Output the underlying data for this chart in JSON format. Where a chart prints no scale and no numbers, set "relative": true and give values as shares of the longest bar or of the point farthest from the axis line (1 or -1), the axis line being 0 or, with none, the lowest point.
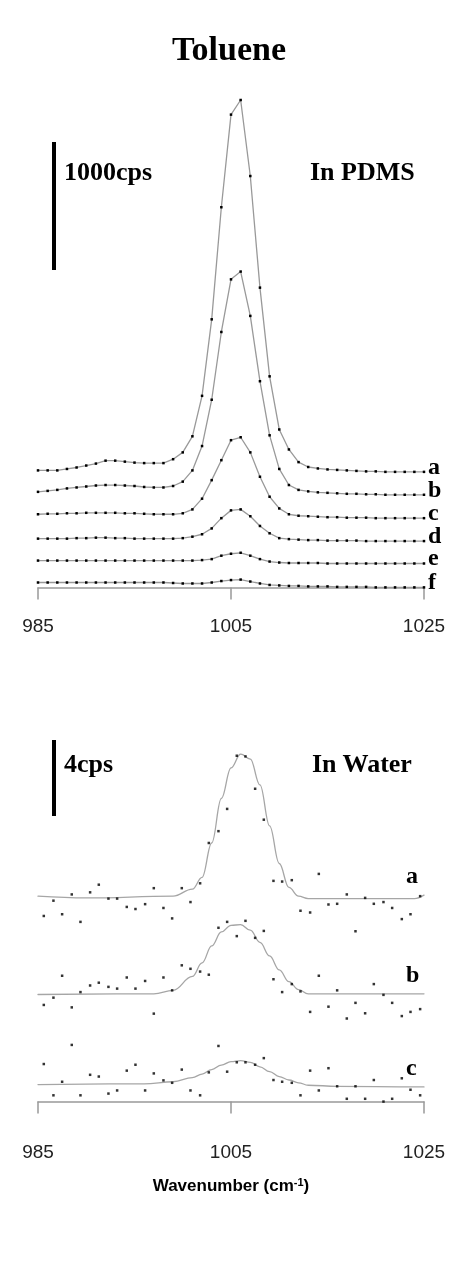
{
  "chart_data": [
    {
      "type": "line",
      "title": "Toluene",
      "relative": true,
      "xlim": [
        985,
        1025
      ],
      "xticks": [
        985,
        1005,
        1025
      ],
      "tick_labels": "x",
      "grid": false,
      "legend": false,
      "marker": "square",
      "line_style": "solid",
      "annotations": [
        "1000cps",
        "In PDMS"
      ],
      "x": [
        985,
        986,
        987,
        988,
        989,
        990,
        991,
        992,
        993,
        994,
        995,
        996,
        997,
        998,
        999,
        1000,
        1001,
        1002,
        1003,
        1004,
        1005,
        1006,
        1007,
        1008,
        1009,
        1010,
        1011,
        1012,
        1013,
        1014,
        1015,
        1016,
        1017,
        1018,
        1019,
        1020,
        1021,
        1022,
        1023,
        1024,
        1025
      ],
      "series": [
        {
          "name": "a",
          "color": "#999999",
          "values": [
            0.24,
            0.24,
            0.24,
            0.243,
            0.246,
            0.25,
            0.254,
            0.26,
            0.26,
            0.258,
            0.256,
            0.255,
            0.255,
            0.255,
            0.263,
            0.277,
            0.31,
            0.393,
            0.55,
            0.78,
            0.97,
            1.0,
            0.844,
            0.615,
            0.433,
            0.324,
            0.283,
            0.257,
            0.247,
            0.244,
            0.242,
            0.241,
            0.24,
            0.239,
            0.238,
            0.238,
            0.237,
            0.237,
            0.237,
            0.237,
            0.237
          ]
        },
        {
          "name": "b",
          "color": "#999999",
          "values": [
            0.196,
            0.198,
            0.2,
            0.203,
            0.205,
            0.207,
            0.209,
            0.21,
            0.21,
            0.209,
            0.208,
            0.206,
            0.205,
            0.205,
            0.208,
            0.217,
            0.24,
            0.29,
            0.385,
            0.524,
            0.632,
            0.648,
            0.557,
            0.423,
            0.312,
            0.243,
            0.21,
            0.2,
            0.197,
            0.195,
            0.194,
            0.193,
            0.192,
            0.192,
            0.191,
            0.191,
            0.19,
            0.19,
            0.19,
            0.19,
            0.19
          ]
        },
        {
          "name": "c",
          "color": "#999999",
          "values": [
            0.15,
            0.151,
            0.151,
            0.152,
            0.152,
            0.153,
            0.153,
            0.153,
            0.153,
            0.152,
            0.152,
            0.151,
            0.15,
            0.15,
            0.15,
            0.152,
            0.16,
            0.182,
            0.22,
            0.261,
            0.302,
            0.308,
            0.277,
            0.227,
            0.186,
            0.162,
            0.15,
            0.147,
            0.146,
            0.145,
            0.144,
            0.144,
            0.143,
            0.143,
            0.143,
            0.142,
            0.142,
            0.142,
            0.142,
            0.142,
            0.142
          ]
        },
        {
          "name": "d",
          "color": "#999999",
          "values": [
            0.1,
            0.1,
            0.1,
            0.1,
            0.101,
            0.101,
            0.102,
            0.102,
            0.101,
            0.101,
            0.1,
            0.1,
            0.1,
            0.1,
            0.1,
            0.101,
            0.104,
            0.109,
            0.121,
            0.142,
            0.158,
            0.16,
            0.146,
            0.126,
            0.111,
            0.101,
            0.099,
            0.098,
            0.097,
            0.097,
            0.096,
            0.096,
            0.096,
            0.096,
            0.095,
            0.095,
            0.095,
            0.095,
            0.095,
            0.095,
            0.095
          ]
        },
        {
          "name": "e",
          "color": "#999999",
          "values": [
            0.055,
            0.055,
            0.055,
            0.055,
            0.055,
            0.055,
            0.055,
            0.055,
            0.055,
            0.055,
            0.055,
            0.055,
            0.055,
            0.055,
            0.055,
            0.055,
            0.055,
            0.056,
            0.058,
            0.065,
            0.069,
            0.071,
            0.065,
            0.058,
            0.053,
            0.051,
            0.05,
            0.05,
            0.05,
            0.05,
            0.049,
            0.049,
            0.049,
            0.049,
            0.049,
            0.049,
            0.049,
            0.049,
            0.049,
            0.049,
            0.049
          ]
        },
        {
          "name": "f",
          "color": "#999999",
          "values": [
            0.01,
            0.01,
            0.01,
            0.01,
            0.01,
            0.01,
            0.01,
            0.01,
            0.01,
            0.01,
            0.01,
            0.01,
            0.01,
            0.01,
            0.009,
            0.008,
            0.008,
            0.008,
            0.01,
            0.013,
            0.015,
            0.016,
            0.012,
            0.008,
            0.005,
            0.004,
            0.003,
            0.003,
            0.002,
            0.002,
            0.002,
            0.001,
            0.001,
            0.001,
            0.001,
            0,
            0,
            0,
            0,
            0,
            0
          ]
        }
      ]
    },
    {
      "type": "line",
      "xlabel": "Wavenumber (cm$^{-1}$)",
      "relative": true,
      "xlim": [
        985,
        1025
      ],
      "xticks": [
        985,
        1005,
        1025
      ],
      "tick_labels": "x",
      "grid": false,
      "legend": false,
      "line_style": "solid",
      "annotations": [
        "4cps",
        "In Water"
      ],
      "series": [
        {
          "name": "a",
          "color": "#a6a6a6",
          "x": [
            985,
            990,
            999,
            1001,
            1002,
            1003,
            1004,
            1005,
            1006,
            1007,
            1008,
            1009,
            1010,
            1011,
            1012,
            1013,
            1024,
            1025
          ],
          "values": [
            0.591,
            0.586,
            0.591,
            0.611,
            0.645,
            0.744,
            0.872,
            0.96,
            1.0,
            0.985,
            0.911,
            0.793,
            0.685,
            0.616,
            0.591,
            0.584,
            0.584,
            0.594
          ]
        },
        {
          "name": "b",
          "color": "#a6a6a6",
          "x": [
            985,
            997,
            999,
            1001,
            1002,
            1003,
            1004,
            1005,
            1006,
            1007,
            1008,
            1009,
            1010,
            1011,
            1012,
            1013,
            1025
          ],
          "values": [
            0.308,
            0.31,
            0.32,
            0.36,
            0.399,
            0.448,
            0.488,
            0.507,
            0.509,
            0.493,
            0.458,
            0.419,
            0.379,
            0.345,
            0.322,
            0.31,
            0.31
          ]
        },
        {
          "name": "c",
          "color": "#a6a6a6",
          "x": [
            985,
            996,
            999,
            1001,
            1002,
            1003,
            1004,
            1005,
            1006,
            1007,
            1008,
            1009,
            1010,
            1011,
            1012,
            1013,
            1016,
            1025
          ],
          "values": [
            0.049,
            0.051,
            0.057,
            0.069,
            0.079,
            0.092,
            0.105,
            0.115,
            0.118,
            0.113,
            0.1,
            0.086,
            0.072,
            0.062,
            0.054,
            0.047,
            0.044,
            0.042
          ]
        },
        {
          "type": "scatter",
          "color": "#000000",
          "x": [
            985.6,
            986.6,
            987.5,
            988.5,
            989.4,
            990.4,
            991.3,
            992.3,
            993.2,
            994.2,
            995.1,
            996.1,
            997.0,
            998.0,
            998.9,
            999.9,
            1000.8,
            1001.8,
            1002.7,
            1003.7,
            1004.6,
            1005.6,
            1006.5,
            1007.5,
            1008.4,
            1009.4,
            1010.3,
            1011.3,
            1012.2,
            1013.2,
            1014.1,
            1015.1,
            1016.0,
            1017.0,
            1017.9,
            1018.9,
            1019.8,
            1020.8,
            1021.7,
            1022.7,
            1023.6,
            1024.6
          ],
          "values": [
            0.534,
            0.578,
            0.539,
            0.596,
            0.517,
            0.602,
            0.624,
            0.584,
            0.584,
            0.56,
            0.554,
            0.568,
            0.614,
            0.557,
            0.527,
            0.614,
            0.574,
            0.628,
            0.744,
            0.778,
            0.842,
            0.995,
            0.993,
            0.9,
            0.811,
            0.635,
            0.633,
            0.637,
            0.549,
            0.544,
            0.655,
            0.567,
            0.569,
            0.596,
            0.49,
            0.586,
            0.569,
            0.574,
            0.557,
            0.525,
            0.539,
            0.591
          ]
        },
        {
          "type": "scatter",
          "color": "#000000",
          "x": [
            985.6,
            986.6,
            987.5,
            988.5,
            989.4,
            990.4,
            991.3,
            992.3,
            993.2,
            994.2,
            995.1,
            996.1,
            997.0,
            998.0,
            998.9,
            999.9,
            1000.8,
            1001.8,
            1002.7,
            1003.7,
            1004.6,
            1005.6,
            1006.5,
            1007.5,
            1008.4,
            1009.4,
            1010.3,
            1011.3,
            1012.2,
            1013.2,
            1014.1,
            1015.1,
            1016.0,
            1017.0,
            1017.9,
            1018.9,
            1019.8,
            1020.8,
            1021.7,
            1022.7,
            1023.6,
            1024.6
          ],
          "values": [
            0.278,
            0.299,
            0.362,
            0.271,
            0.315,
            0.334,
            0.342,
            0.33,
            0.325,
            0.357,
            0.325,
            0.347,
            0.253,
            0.357,
            0.32,
            0.392,
            0.382,
            0.374,
            0.365,
            0.5,
            0.517,
            0.476,
            0.52,
            0.471,
            0.491,
            0.352,
            0.315,
            0.338,
            0.317,
            0.258,
            0.362,
            0.273,
            0.32,
            0.239,
            0.284,
            0.254,
            0.338,
            0.307,
            0.284,
            0.246,
            0.258,
            0.266
          ]
        },
        {
          "type": "scatter",
          "color": "#000000",
          "x": [
            985.6,
            986.6,
            987.5,
            988.5,
            989.4,
            990.4,
            991.3,
            992.3,
            993.2,
            994.2,
            995.1,
            996.1,
            997.0,
            998.0,
            998.9,
            999.9,
            1000.8,
            1001.8,
            1002.7,
            1003.7,
            1004.6,
            1005.6,
            1006.5,
            1007.5,
            1008.4,
            1009.4,
            1010.3,
            1011.3,
            1012.2,
            1013.2,
            1014.1,
            1015.1,
            1016.0,
            1017.0,
            1017.9,
            1018.9,
            1019.8,
            1020.8,
            1021.7,
            1022.7,
            1023.6,
            1024.6
          ],
          "values": [
            0.108,
            0.018,
            0.057,
            0.163,
            0.018,
            0.077,
            0.072,
            0.023,
            0.032,
            0.089,
            0.106,
            0.032,
            0.081,
            0.061,
            0.054,
            0.092,
            0.032,
            0.018,
            0.084,
            0.16,
            0.086,
            0.113,
            0.113,
            0.106,
            0.125,
            0.062,
            0.057,
            0.054,
            0.018,
            0.089,
            0.032,
            0.096,
            0.044,
            0.008,
            0.044,
            0.008,
            0.062,
            0,
            0.008,
            0.067,
            0.034,
            0.018
          ]
        }
      ]
    }
  ]
}
